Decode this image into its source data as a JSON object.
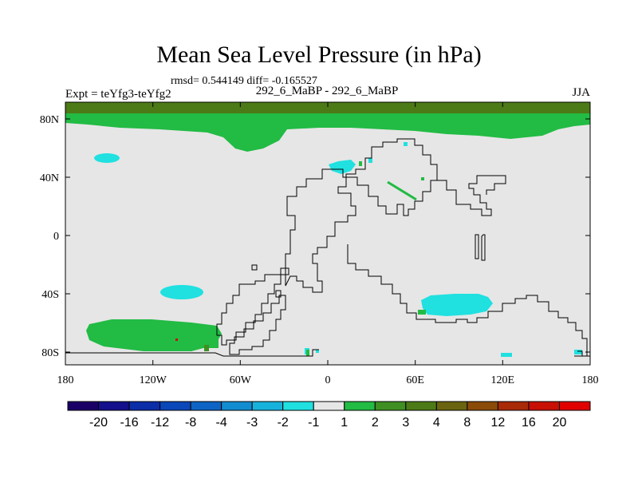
{
  "title": "Mean Sea Level Pressure (in hPa)",
  "stats": "rmsd= 0.544149 diff= -0.165527",
  "left_label": "Expt = teYfg3-teYfg2",
  "center_label": "292_6_MaBP - 292_6_MaBP",
  "right_label": "JJA",
  "lat_ticks": [
    "80N",
    "40N",
    "0",
    "40S",
    "80S"
  ],
  "lon_ticks": [
    "180",
    "120W",
    "60W",
    "0",
    "60E",
    "120E",
    "180"
  ],
  "colorbar": {
    "labels": [
      "-20",
      "-16",
      "-12",
      "-8",
      "-4",
      "-3",
      "-2",
      "-1",
      "1",
      "2",
      "3",
      "4",
      "8",
      "12",
      "16",
      "20"
    ],
    "colors": [
      "#1a0066",
      "#140f8c",
      "#0b2da8",
      "#0a47b8",
      "#0e64c4",
      "#128cd0",
      "#17b2dc",
      "#20e0e0",
      "#e6e6e6",
      "#22bb44",
      "#3f8f22",
      "#4c7a16",
      "#6a6410",
      "#8a4a08",
      "#a82a06",
      "#c81004",
      "#e00000"
    ]
  },
  "map_colors": {
    "background": "#e6e6e6",
    "green": "#22bb44",
    "dark_green": "#4c7a16",
    "cyan": "#20e0e0",
    "red": "#c81004"
  }
}
